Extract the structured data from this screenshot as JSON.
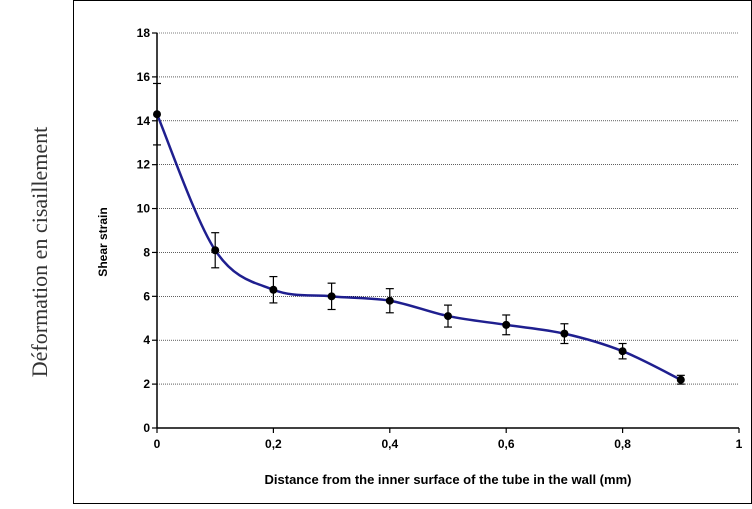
{
  "page": {
    "outer_ylabel": "Déformation en cisaillement"
  },
  "chart_data": {
    "type": "line",
    "title": "",
    "xlabel": "Distance from the inner surface of the tube in the wall (mm)",
    "ylabel": "Shear strain",
    "xlim": [
      0,
      1
    ],
    "ylim": [
      0,
      18
    ],
    "x_ticks": [
      0,
      0.2,
      0.4,
      0.6,
      0.8,
      1
    ],
    "x_tick_labels": [
      "0",
      "0,2",
      "0,4",
      "0,6",
      "0,8",
      "1"
    ],
    "y_ticks": [
      0,
      2,
      4,
      6,
      8,
      10,
      12,
      14,
      16,
      18
    ],
    "y_tick_labels": [
      "0",
      "2",
      "4",
      "6",
      "8",
      "10",
      "12",
      "14",
      "16",
      "18"
    ],
    "grid": "horizontal",
    "legend": "none",
    "line_color": "#1f1f8f",
    "marker_color": "#000000",
    "series": [
      {
        "x": [
          0,
          0.1,
          0.2,
          0.3,
          0.4,
          0.5,
          0.6,
          0.7,
          0.8,
          0.9
        ],
        "y": [
          14.3,
          8.1,
          6.3,
          6.0,
          5.8,
          5.1,
          4.7,
          4.3,
          3.5,
          2.2
        ],
        "err": [
          1.4,
          0.8,
          0.6,
          0.6,
          0.55,
          0.5,
          0.45,
          0.45,
          0.35,
          0.2
        ]
      }
    ]
  }
}
